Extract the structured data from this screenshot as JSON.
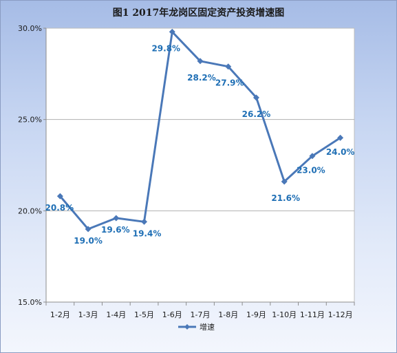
{
  "chart_data": {
    "type": "line",
    "title": "图1 2017年龙岗区固定资产投资增速图",
    "xlabel": "",
    "ylabel": "",
    "categories": [
      "1-2月",
      "1-3月",
      "1-4月",
      "1-5月",
      "1-6月",
      "1-7月",
      "1-8月",
      "1-9月",
      "1-10月",
      "1-11月",
      "1-12月"
    ],
    "series": [
      {
        "name": "增速",
        "values": [
          20.8,
          19.0,
          19.6,
          19.4,
          29.8,
          28.2,
          27.9,
          26.2,
          21.6,
          23.0,
          24.0
        ],
        "labels": [
          "20.8%",
          "19.0%",
          "19.6%",
          "19.4%",
          "29.8%",
          "28.2%",
          "27.9%",
          "26.2%",
          "21.6%",
          "23.0%",
          "24.0%"
        ],
        "color": "#4a78b8"
      }
    ],
    "ylim": [
      15.0,
      30.0
    ],
    "yticks": [
      15.0,
      20.0,
      25.0,
      30.0
    ],
    "ytick_labels": [
      "15.0%",
      "20.0%",
      "25.0%",
      "30.0%"
    ],
    "grid": true,
    "legend": "bottom",
    "label_color": "#1f6fb5"
  }
}
